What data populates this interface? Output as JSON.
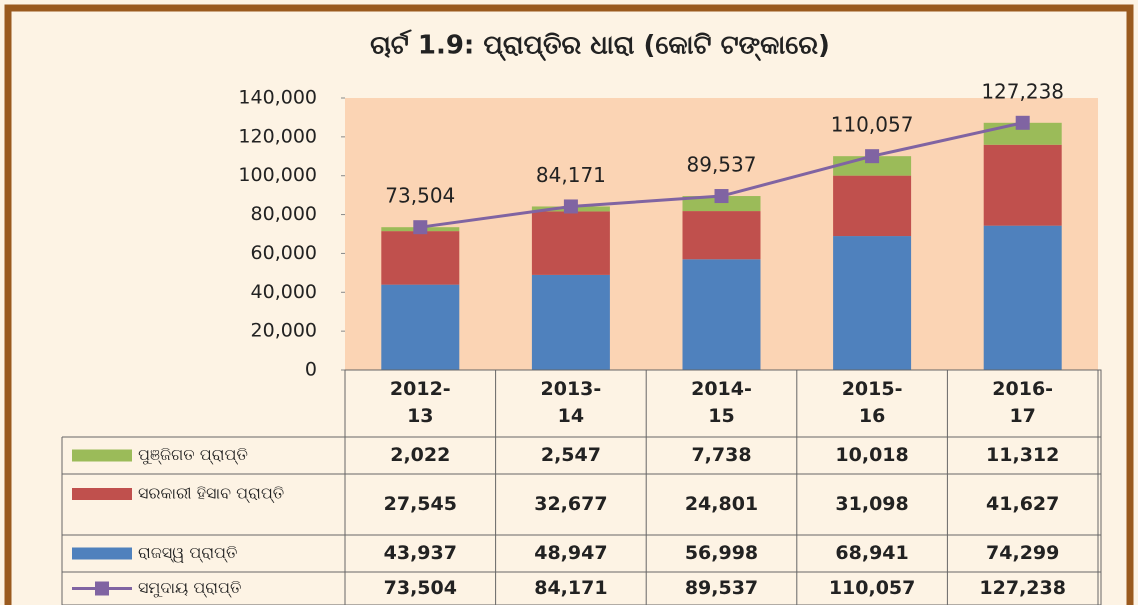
{
  "chart_data": {
    "type": "stacked-bar-line",
    "title": "ଚାର୍ଟ 1.9: ପ୍ରାପ୍ତିର  ଧାରା (କୋଟି ଟଙ୍କାରେ)",
    "categories": [
      "2012-13",
      "2013-14",
      "2014-15",
      "2015-16",
      "2016-17"
    ],
    "series": [
      {
        "name": "ପୁଞ୍ଜିଗତ ପ୍ରାପ୍ତି",
        "color": "#9bbb59",
        "values": [
          2022,
          2547,
          7738,
          10018,
          11312
        ],
        "value_labels": [
          "2,022",
          "2,547",
          "7,738",
          "10,018",
          "11,312"
        ]
      },
      {
        "name": "ସରକାରୀ ହିସାବ ପ୍ରାପ୍ତି",
        "color": "#c0504d",
        "values": [
          27545,
          32677,
          24801,
          31098,
          41627
        ],
        "value_labels": [
          "27,545",
          "32,677",
          "24,801",
          "31,098",
          "41,627"
        ]
      },
      {
        "name": "ରାଜସ୍ୱ ପ୍ରାପ୍ତି",
        "color": "#4f81bd",
        "values": [
          43937,
          48947,
          56998,
          68941,
          74299
        ],
        "value_labels": [
          "43,937",
          "48,947",
          "56,998",
          "68,941",
          "74,299"
        ]
      },
      {
        "name": "ସମୁଦାୟ ପ୍ରାପ୍ତି",
        "color": "#8064a2",
        "type": "line",
        "values": [
          73504,
          84171,
          89537,
          110057,
          127238
        ],
        "value_labels": [
          "73,504",
          "84,171",
          "89,537",
          "110,057",
          "127,238"
        ]
      }
    ],
    "ylim": [
      0,
      140000
    ],
    "yticks": [
      0,
      {
        "value": 20000,
        "label": "20,000"
      },
      {
        "value": 40000,
        "label": "40,000"
      },
      {
        "value": 60000,
        "label": "60,000"
      },
      {
        "value": 80000,
        "label": "80,000"
      },
      {
        "value": 100000,
        "label": "100,000"
      },
      {
        "value": 120000,
        "label": "120,000"
      },
      {
        "value": 140000,
        "label": "140,000"
      }
    ],
    "grid": false
  }
}
